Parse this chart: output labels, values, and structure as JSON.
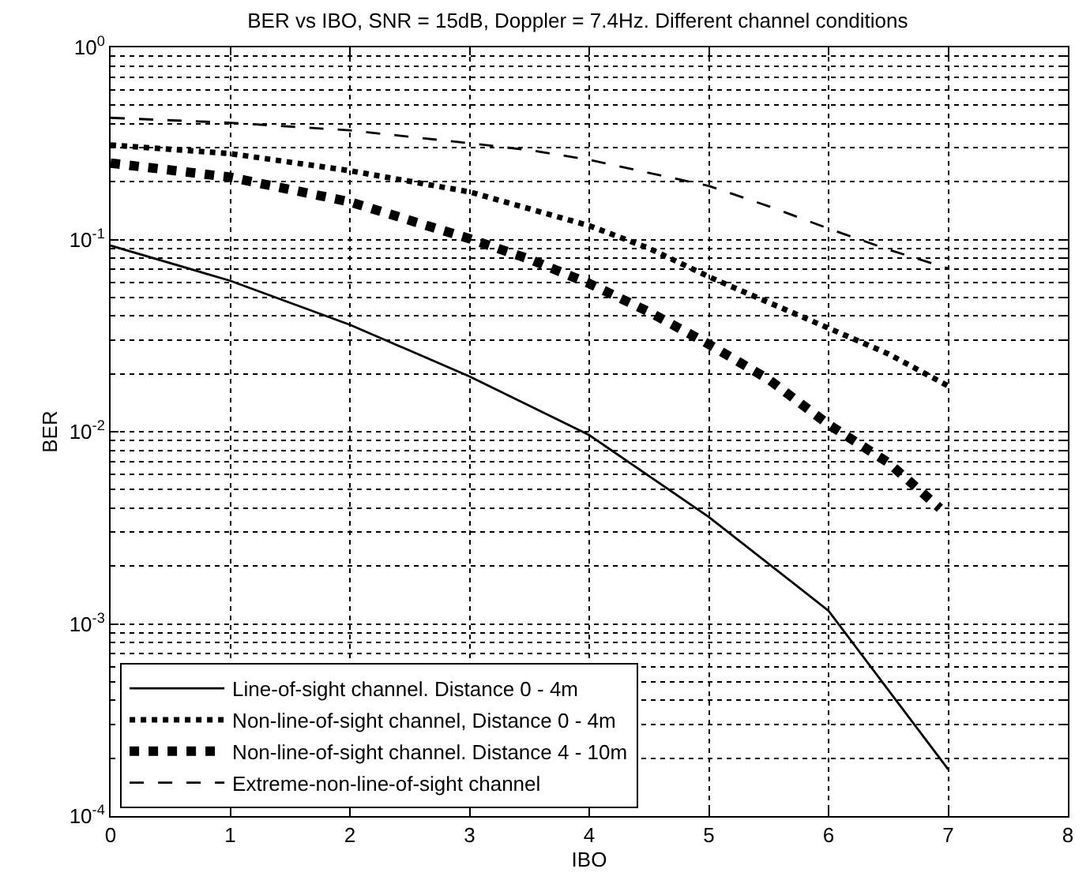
{
  "chart_data": {
    "type": "line",
    "title": "BER vs IBO, SNR = 15dB, Doppler = 7.4Hz. Different channel conditions",
    "xlabel": "IBO",
    "ylabel": "BER",
    "series": [
      {
        "name": "Line-of-sight channel. Distance 0 - 4m",
        "color": "#000000",
        "line_style": "solid",
        "marker": "none",
        "x": [
          0,
          1,
          2,
          3,
          4,
          5,
          6,
          7
        ],
        "values": [
          0.093,
          0.061,
          0.036,
          0.0194,
          0.0096,
          0.0036,
          0.00117,
          0.000175
        ]
      },
      {
        "name": "Non-line-of-sight channel, Distance 0 - 4m",
        "color": "#000000",
        "line_style": "dotted",
        "marker": "none",
        "x": [
          0,
          1,
          2,
          3,
          4,
          4.5,
          5,
          5.5,
          6,
          6.5,
          7
        ],
        "values": [
          0.31,
          0.28,
          0.228,
          0.177,
          0.118,
          0.09,
          0.064,
          0.047,
          0.0346,
          0.0254,
          0.0173
        ]
      },
      {
        "name": "Non-line-of-sight channel. Distance 4 - 10m",
        "color": "#000000",
        "line_style": "dotted",
        "x": [
          0,
          1,
          2,
          3,
          3.5,
          4,
          4.5,
          5,
          5.5,
          6,
          6.5,
          6.93
        ],
        "values": [
          0.25,
          0.211,
          0.157,
          0.101,
          0.079,
          0.059,
          0.042,
          0.0285,
          0.0187,
          0.0109,
          0.0069,
          0.004
        ]
      },
      {
        "name": "Extreme-non-line-of-sight channel",
        "color": "#000000",
        "line_style": "dashed",
        "marker": "none",
        "x": [
          0,
          1,
          2,
          3,
          3.5,
          4,
          5,
          5.5,
          6,
          6.5,
          7
        ],
        "values": [
          0.43,
          0.405,
          0.37,
          0.317,
          0.292,
          0.26,
          0.19,
          0.149,
          0.114,
          0.0887,
          0.0707
        ]
      }
    ],
    "log": "y",
    "xlim": [
      0,
      8
    ],
    "xticks": [
      0,
      1,
      2,
      3,
      4,
      5,
      6,
      7,
      8
    ],
    "ylim": [
      0.0001,
      1
    ],
    "yticks": [
      {
        "value": 0.0001,
        "label": "10$^{-4}$"
      },
      {
        "value": 0.001,
        "label": "10$^{-3}$"
      },
      {
        "value": 0.01,
        "label": "10$^{-2}$"
      },
      {
        "value": 0.1,
        "label": "10$^{-1}$"
      },
      {
        "value": 1,
        "label": "10$^{0}$"
      }
    ],
    "grid": true,
    "legend": "bottom left"
  }
}
